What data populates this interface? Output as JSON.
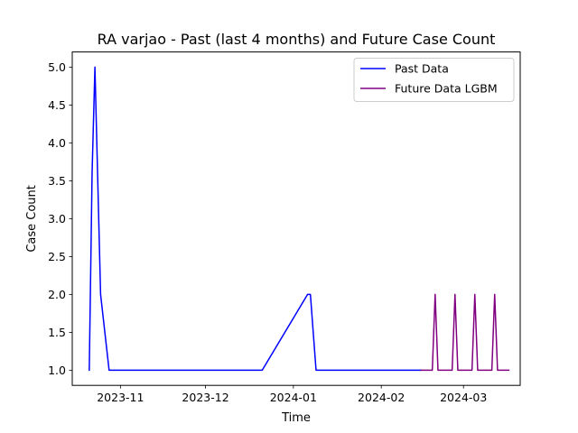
{
  "chart_data": {
    "type": "line",
    "title": "RA varjao - Past (last 4 months) and Future Case Count",
    "xlabel": "Time",
    "ylabel": "Case Count",
    "xlim": [
      "2023-10-15",
      "2024-03-21"
    ],
    "ylim": [
      0.8,
      5.2
    ],
    "x_ticks": [
      "2023-11-01",
      "2023-12-01",
      "2024-01-01",
      "2024-02-01",
      "2024-03-01"
    ],
    "x_tick_labels": [
      "2023-11",
      "2023-12",
      "2024-01",
      "2024-02",
      "2024-03"
    ],
    "y_ticks": [
      1.0,
      1.5,
      2.0,
      2.5,
      3.0,
      3.5,
      4.0,
      4.5,
      5.0
    ],
    "y_tick_labels": [
      "1.0",
      "1.5",
      "2.0",
      "2.5",
      "3.0",
      "3.5",
      "4.0",
      "4.5",
      "5.0"
    ],
    "grid": false,
    "legend_position": "upper-right",
    "series": [
      {
        "name": "Past Data",
        "color": "#0000ff",
        "points": [
          {
            "x": "2023-10-21",
            "y": 1
          },
          {
            "x": "2023-10-22",
            "y": 3.6
          },
          {
            "x": "2023-10-23",
            "y": 5
          },
          {
            "x": "2023-10-25",
            "y": 2
          },
          {
            "x": "2023-10-28",
            "y": 1
          },
          {
            "x": "2023-12-21",
            "y": 1
          },
          {
            "x": "2024-01-06",
            "y": 2
          },
          {
            "x": "2024-01-07",
            "y": 2
          },
          {
            "x": "2024-01-09",
            "y": 1
          },
          {
            "x": "2024-02-15",
            "y": 1
          }
        ]
      },
      {
        "name": "Future Data LGBM",
        "color": "#800080",
        "points": [
          {
            "x": "2024-02-15",
            "y": 1
          },
          {
            "x": "2024-02-19",
            "y": 1
          },
          {
            "x": "2024-02-20",
            "y": 2
          },
          {
            "x": "2024-02-21",
            "y": 1
          },
          {
            "x": "2024-02-26",
            "y": 1
          },
          {
            "x": "2024-02-27",
            "y": 2
          },
          {
            "x": "2024-02-28",
            "y": 1
          },
          {
            "x": "2024-03-04",
            "y": 1
          },
          {
            "x": "2024-03-05",
            "y": 2
          },
          {
            "x": "2024-03-06",
            "y": 1
          },
          {
            "x": "2024-03-11",
            "y": 1
          },
          {
            "x": "2024-03-12",
            "y": 2
          },
          {
            "x": "2024-03-13",
            "y": 1
          },
          {
            "x": "2024-03-17",
            "y": 1
          }
        ]
      }
    ]
  }
}
